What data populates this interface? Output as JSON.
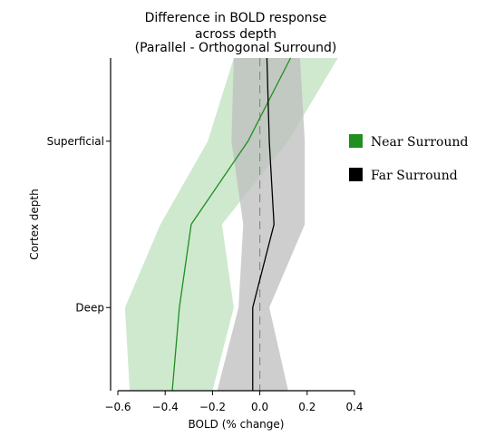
{
  "chart_data": {
    "type": "line",
    "title": [
      "Difference in BOLD response",
      "across depth",
      "(Parallel - Orthogonal Surround)"
    ],
    "xlabel": "BOLD (% change)",
    "ylabel": "Cortex depth",
    "xlim": [
      -0.6,
      0.4
    ],
    "xticks": [
      -0.6,
      -0.4,
      -0.2,
      0.0,
      0.2,
      0.4
    ],
    "xtick_labels": [
      "−0.6",
      "−0.4",
      "−0.2",
      "0.0",
      "0.2",
      "0.4"
    ],
    "ylim": [
      -0.5,
      1.5
    ],
    "yticks": [
      0,
      1
    ],
    "ytick_labels": [
      "Deep",
      "Superficial"
    ],
    "zero_reference": {
      "x": 0.0,
      "style": "dashed"
    },
    "grid": false,
    "legend": "right",
    "series": [
      {
        "name": "Near Surround",
        "color": "#1f8f1f",
        "band_color": "#cfe9cf",
        "y": [
          -0.5,
          0.0,
          0.5,
          1.0,
          1.5
        ],
        "x": [
          -0.37,
          -0.34,
          -0.29,
          -0.05,
          0.13
        ],
        "lower": [
          -0.55,
          -0.57,
          -0.42,
          -0.22,
          -0.11
        ],
        "upper": [
          -0.2,
          -0.11,
          -0.16,
          0.12,
          0.33
        ]
      },
      {
        "name": "Far Surround",
        "color": "#000000",
        "band_color": "#bebebe",
        "y": [
          -0.5,
          0.0,
          0.5,
          1.0,
          1.5
        ],
        "x": [
          -0.03,
          -0.03,
          0.06,
          0.04,
          0.03
        ],
        "lower": [
          -0.18,
          -0.09,
          -0.07,
          -0.12,
          -0.11
        ],
        "upper": [
          0.12,
          0.04,
          0.19,
          0.19,
          0.17
        ]
      }
    ]
  }
}
